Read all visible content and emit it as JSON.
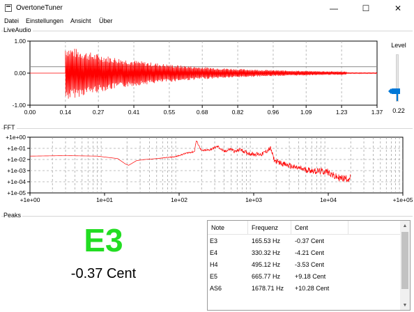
{
  "window": {
    "title": "OvertoneTuner",
    "app_icon": "window-app-icon",
    "controls": {
      "minimize": "—",
      "maximize": "☐",
      "close": "✕"
    }
  },
  "menu": [
    {
      "label": "Datei"
    },
    {
      "label": "Einstellungen"
    },
    {
      "label": "Ansicht"
    },
    {
      "label": "Über"
    }
  ],
  "live_audio": {
    "group_label": "LiveAudio",
    "level": {
      "label": "Level",
      "value": "0.22",
      "fraction": 0.22
    }
  },
  "fft": {
    "group_label": "FFT"
  },
  "peaks": {
    "group_label": "Peaks",
    "note": "E3",
    "cents": "-0.37 Cent",
    "note_color": "#22dd22",
    "columns": [
      "Note",
      "Frequenz",
      "Cent"
    ],
    "rows": [
      {
        "note": "E3",
        "freq": "165.53 Hz",
        "cent": "-0.37 Cent"
      },
      {
        "note": "E4",
        "freq": "330.32 Hz",
        "cent": "-4.21 Cent"
      },
      {
        "note": "H4",
        "freq": "495.12 Hz",
        "cent": "-3.53 Cent"
      },
      {
        "note": "E5",
        "freq": "665.77 Hz",
        "cent": "+9.18 Cent"
      },
      {
        "note": "AS6",
        "freq": "1678.71 Hz",
        "cent": "+10.28 Cent"
      }
    ]
  },
  "chart_data": [
    {
      "type": "line",
      "name": "waveform",
      "xlim": [
        0,
        1.37
      ],
      "ylim": [
        -1,
        1
      ],
      "x_ticks": [
        "0.00",
        "0.14",
        "0.27",
        "0.41",
        "0.55",
        "0.68",
        "0.82",
        "0.96",
        "1.09",
        "1.23",
        "1.37"
      ],
      "x_tick_values": [
        0,
        0.14,
        0.27,
        0.41,
        0.55,
        0.68,
        0.82,
        0.96,
        1.09,
        1.23,
        1.37
      ],
      "y_ticks": [
        "1.00",
        "0.00",
        "-1.00"
      ],
      "y_tick_values": [
        1,
        0,
        -1
      ],
      "reference_line_y": 0.2,
      "onset_x": 0.14,
      "envelope": {
        "peak_amplitude": 0.85,
        "decay_end_x": 1.25
      },
      "color": "#ff0000",
      "grid": "dashed"
    },
    {
      "type": "line",
      "name": "spectrum",
      "x_scale": "log",
      "y_scale": "log",
      "xlim": [
        1,
        100000
      ],
      "ylim": [
        1e-05,
        1
      ],
      "x_ticks": [
        "+1e+00",
        "1e+01",
        "1e+02",
        "1e+03",
        "1e+04",
        "+1e+05"
      ],
      "x_tick_values": [
        1,
        10,
        100,
        1000,
        10000,
        100000
      ],
      "y_ticks": [
        "+1e+00",
        "+1e-01",
        "+1e-02",
        "+1e-03",
        "+1e-04",
        "+1e-05"
      ],
      "y_tick_values": [
        1,
        0.1,
        0.01,
        0.001,
        0.0001,
        1e-05
      ],
      "x": [
        1,
        3,
        8,
        15,
        19,
        21,
        27,
        35,
        50,
        70,
        90,
        130,
        160,
        170,
        200,
        250,
        330,
        400,
        495,
        560,
        665,
        800,
        1000,
        1300,
        1680,
        1900,
        2500,
        3500,
        5000,
        7000,
        10000,
        12000,
        15000,
        20000
      ],
      "y": [
        0.02,
        0.022,
        0.02,
        0.012,
        0.004,
        0.003,
        0.008,
        0.01,
        0.012,
        0.015,
        0.018,
        0.04,
        0.05,
        0.5,
        0.06,
        0.07,
        0.15,
        0.05,
        0.09,
        0.05,
        0.08,
        0.04,
        0.03,
        0.03,
        0.1,
        0.008,
        0.004,
        0.002,
        0.0012,
        0.0009,
        0.0008,
        0.0003,
        0.0002,
        0.0002
      ],
      "noise": 0.35,
      "color": "#ff0000",
      "grid": "dashed"
    }
  ]
}
